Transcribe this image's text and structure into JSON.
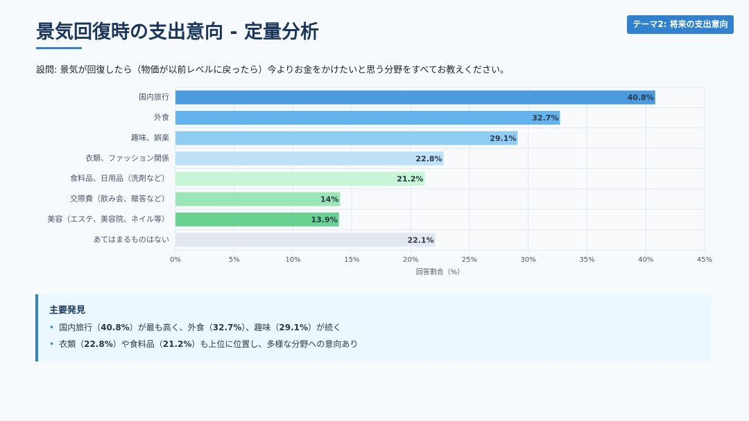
{
  "header": {
    "title": "景気回復時の支出意向 - 定量分析",
    "badge": "テーマ2: 将来の支出意向"
  },
  "question": "設問: 景気が回復したら（物価が以前レベルに戻ったら）今よりお金をかけたいと思う分野をすべてお教えください。",
  "chart_data": {
    "type": "hbar",
    "categories": [
      "国内旅行",
      "外食",
      "趣味、娯楽",
      "衣類、ファッション関係",
      "食料品、日用品（洗剤など）",
      "交際費（飲み会、贈答など）",
      "美容（エステ、美容院、ネイル等）",
      "あてはまるものはない"
    ],
    "values": [
      40.8,
      32.7,
      29.1,
      22.8,
      21.2,
      14,
      13.9,
      22.1
    ],
    "value_labels": [
      "40.8%",
      "32.7%",
      "29.1%",
      "22.8%",
      "21.2%",
      "14%",
      "13.9%",
      "22.1%"
    ],
    "colors": [
      "#4a9be0",
      "#63b3ed",
      "#90cdf4",
      "#bee3f8",
      "#c6f6d5",
      "#9ae6b4",
      "#68d391",
      "#e2e8f0"
    ],
    "xlim": [
      0,
      45
    ],
    "xticks": [
      {
        "value": 0,
        "label": "0%"
      },
      {
        "value": 5,
        "label": "5%"
      },
      {
        "value": 10,
        "label": "10%"
      },
      {
        "value": 15,
        "label": "15%"
      },
      {
        "value": 20,
        "label": "20%"
      },
      {
        "value": 25,
        "label": "25%"
      },
      {
        "value": 30,
        "label": "30%"
      },
      {
        "value": 35,
        "label": "35%"
      },
      {
        "value": 40,
        "label": "40%"
      },
      {
        "value": 45,
        "label": "45%"
      }
    ],
    "xlabel": "回答割合（%）",
    "grid": true
  },
  "findings": {
    "title": "主要発見",
    "items": [
      [
        "国内旅行（",
        "40.8%",
        "）が最も高く、外食（",
        "32.7%",
        "）、趣味（",
        "29.1%",
        "）が続く"
      ],
      [
        "衣類（",
        "22.8%",
        "）や食料品（",
        "21.2%",
        "）も上位に位置し、多様な分野への意向あり"
      ]
    ]
  }
}
